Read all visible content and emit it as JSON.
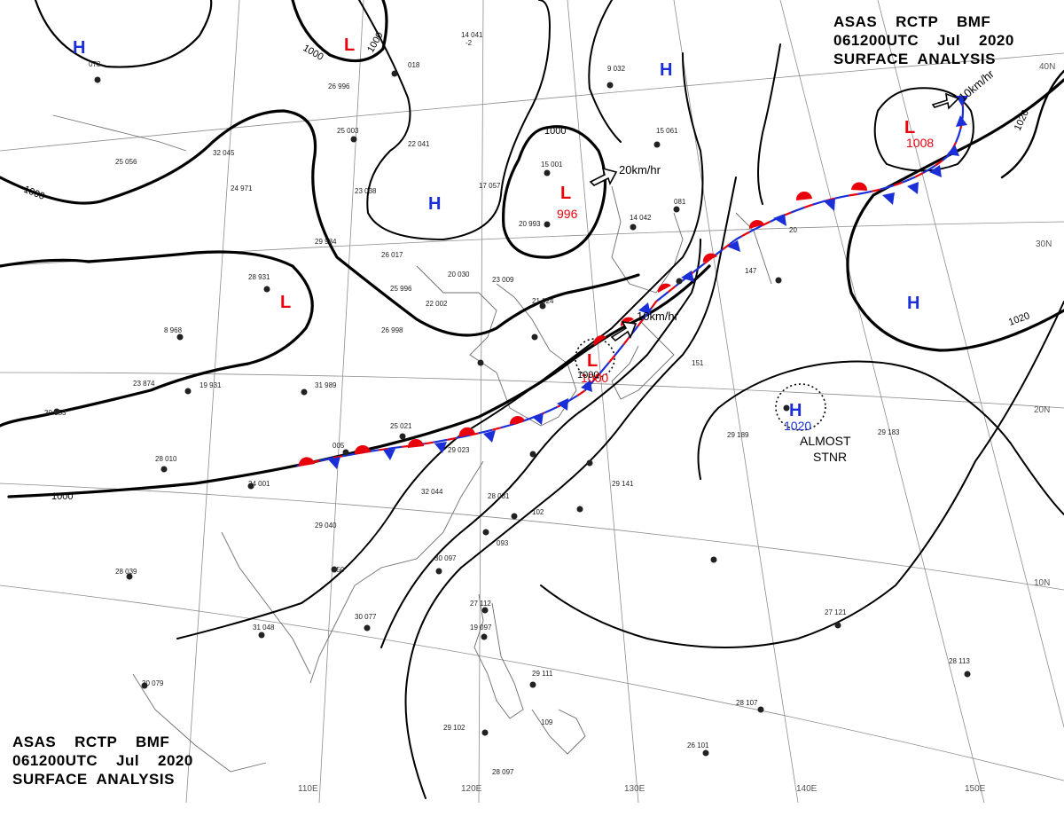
{
  "header": {
    "line1": "ASAS    RCTP    BMF",
    "line2": "061200UTC    Jul    2020",
    "line3": "SURFACE  ANALYSIS"
  },
  "colors": {
    "low": "#e8000b",
    "high": "#1a2fd8",
    "warm": "#e8000b",
    "cold": "#1a2fd8",
    "isobar": "#000000",
    "grid": "#8c8c8c"
  },
  "grid_labels": {
    "lon": [
      "110E",
      "120E",
      "130E",
      "140E",
      "150E"
    ],
    "lat": [
      "30N",
      "20N",
      "10N",
      "40N"
    ]
  },
  "pressure_centers": [
    {
      "type": "H",
      "name": "high-northwest"
    },
    {
      "type": "L",
      "name": "low-north"
    },
    {
      "type": "H",
      "name": "high-central"
    },
    {
      "type": "L",
      "name": "low-mongolia",
      "value": "996"
    },
    {
      "type": "H",
      "name": "high-north"
    },
    {
      "type": "L",
      "name": "low-northeast",
      "value": "1008"
    },
    {
      "type": "L",
      "name": "low-west"
    },
    {
      "type": "L",
      "name": "low-korea",
      "value": "1000"
    },
    {
      "type": "H",
      "name": "high-pacific-1",
      "value": "1020"
    },
    {
      "type": "H",
      "name": "high-pacific-2"
    }
  ],
  "isobar_labels": [
    "1000",
    "1000",
    "1000",
    "1000",
    "1000",
    "1000",
    "1020",
    "1020"
  ],
  "motion_labels": [
    "20km/hr",
    "10km/hr",
    "10km/hr"
  ],
  "annotation": {
    "line1": "ALMOST",
    "line2": "STNR"
  }
}
